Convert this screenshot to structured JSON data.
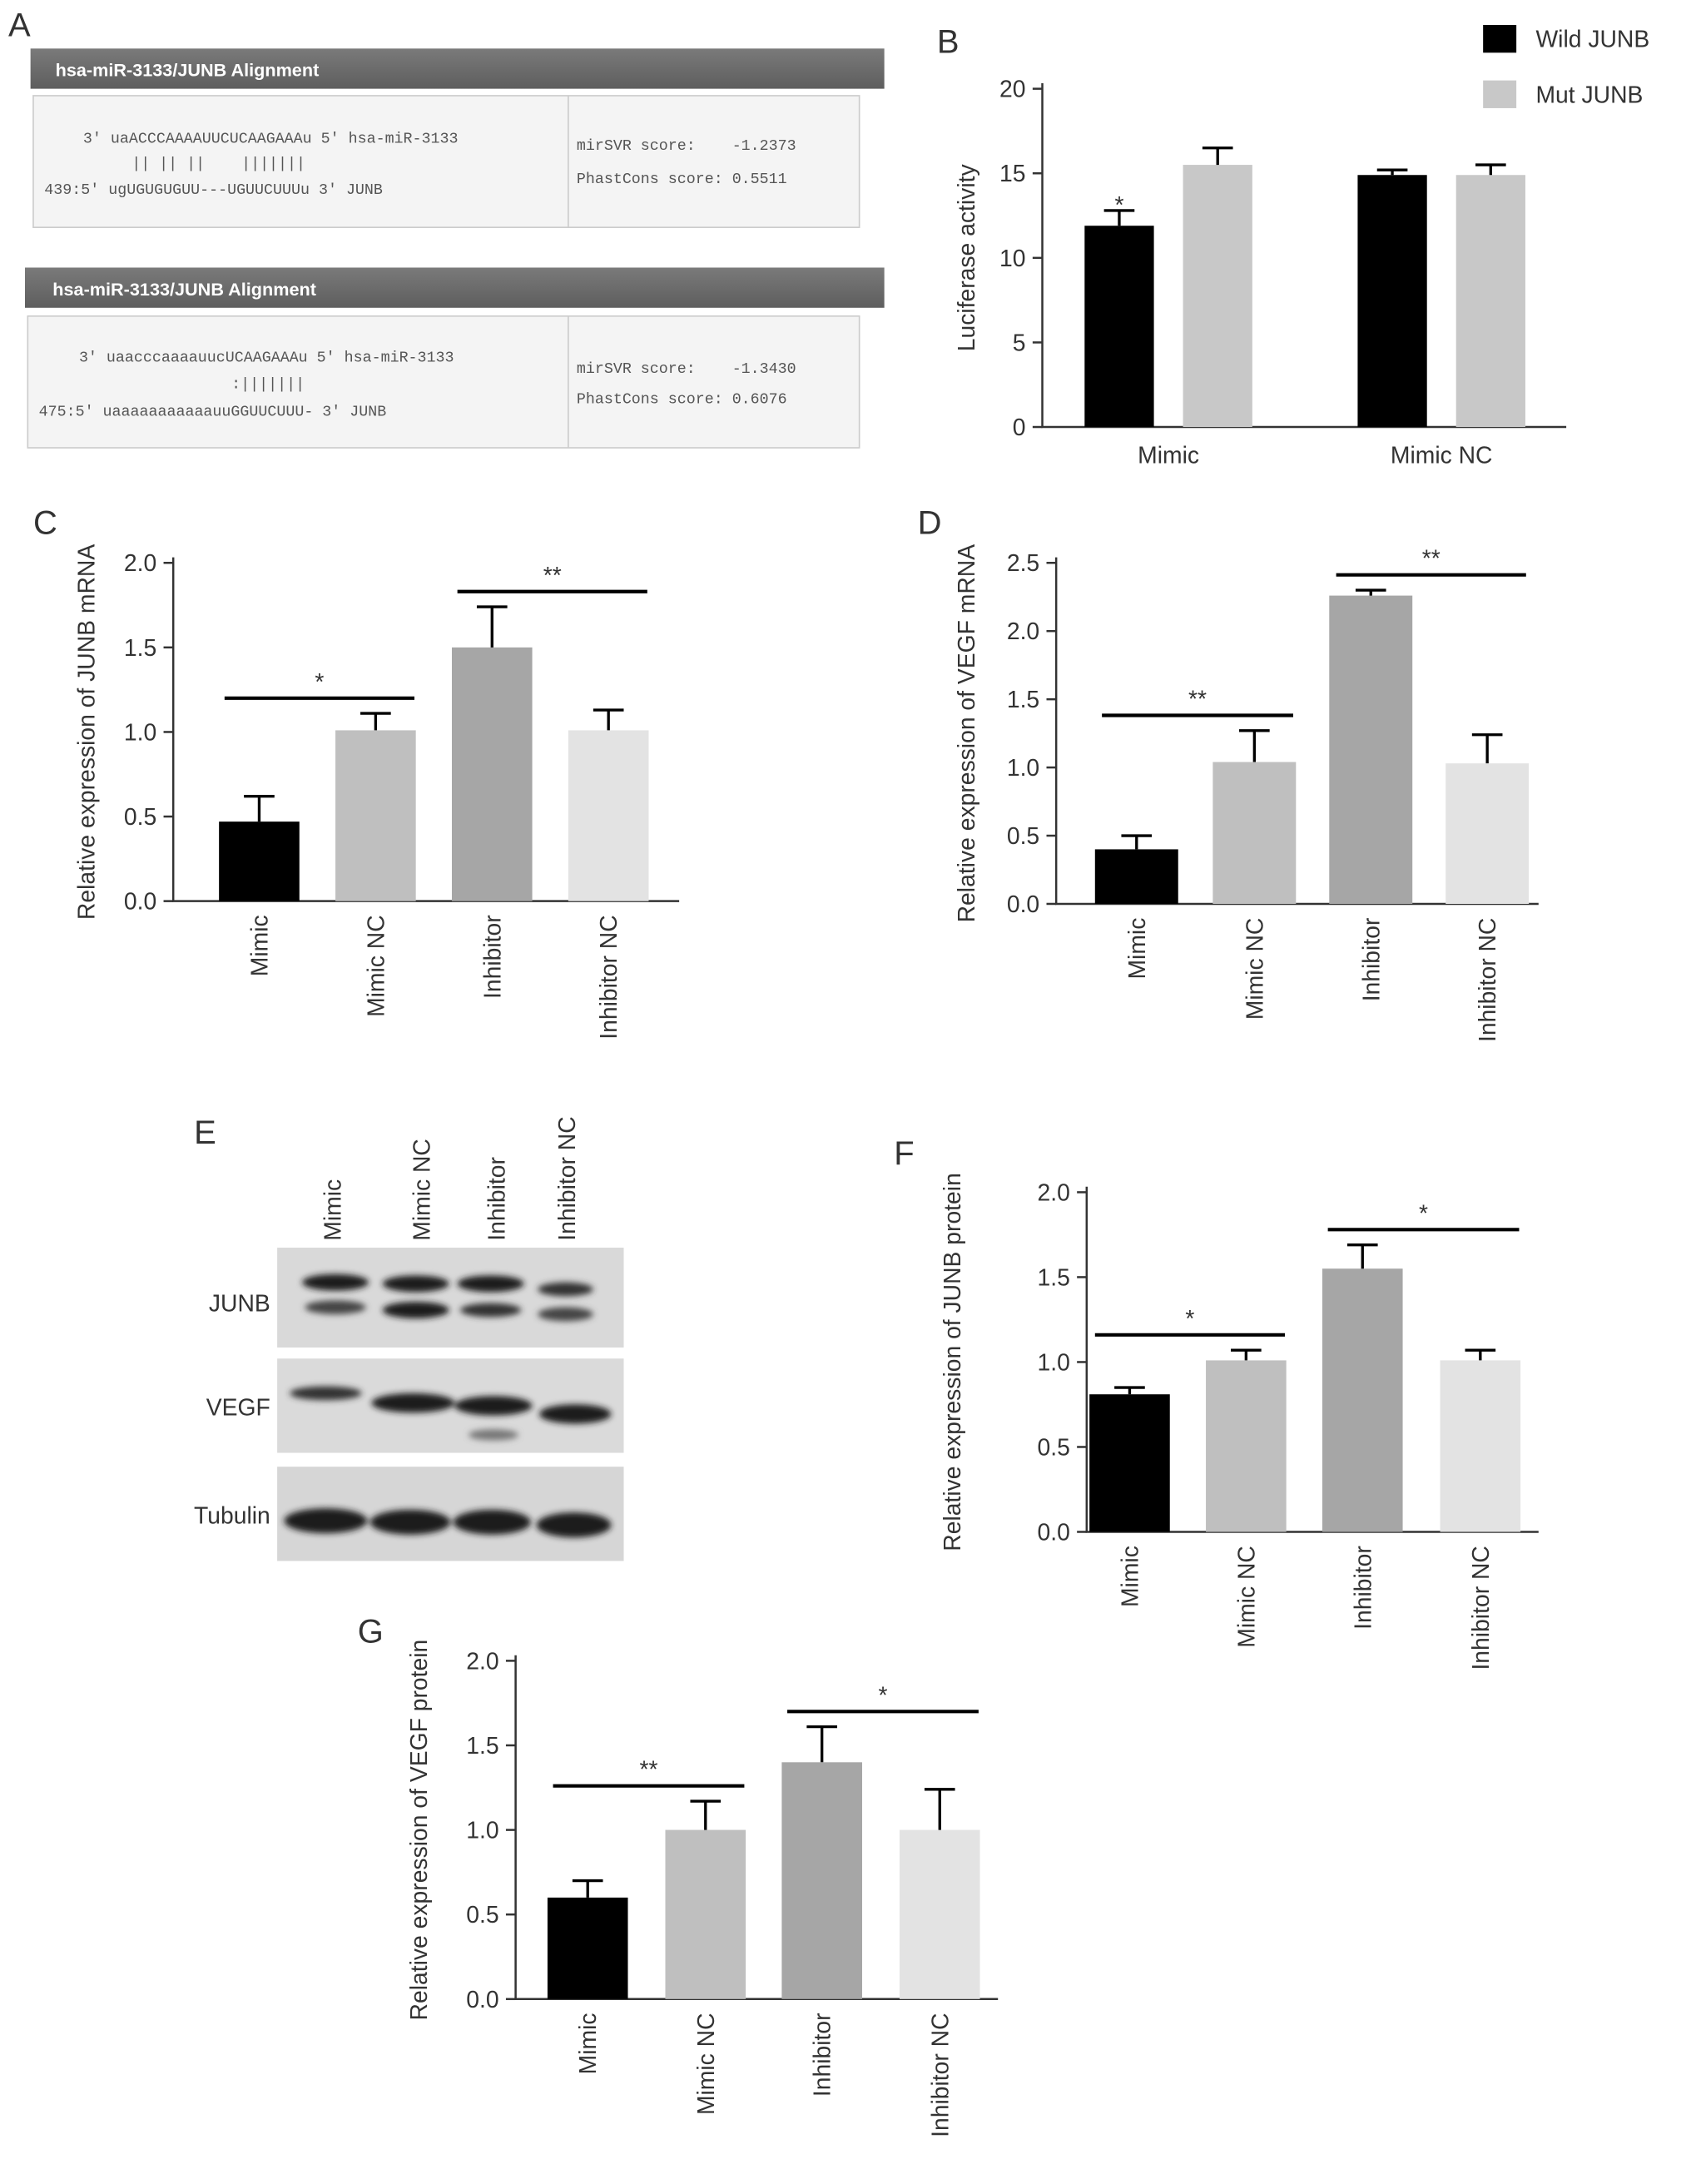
{
  "panel_labels": [
    "A",
    "B",
    "C",
    "D",
    "E",
    "F",
    "G"
  ],
  "alignments": [
    {
      "title": "hsa-miR-3133/JUNB Alignment",
      "lines": [
        "3' uaACCCAAAAUUCUCAAGAAAu 5' hsa-miR-3133",
        "|| || ||    |||||||",
        "439:5' ugUGUGUGUU---UGUUCUUUu 3' JUNB"
      ],
      "scores": [
        "mirSVR score:    -1.2373",
        "PhastCons score: 0.5511"
      ]
    },
    {
      "title": "hsa-miR-3133/JUNB Alignment",
      "lines": [
        "3' uaacccaaaauucUCAAGAAAu 5' hsa-miR-3133",
        ":|||||||",
        "475:5' uaaaaaaaaaaauuGGUUCUUU- 3' JUNB"
      ],
      "scores": [
        "mirSVR score:    -1.3430",
        "PhastCons score: 0.6076"
      ]
    }
  ],
  "blot": {
    "lanes": [
      "Mimic",
      "Mimic NC",
      "Inhibitor",
      "Inhibitor NC"
    ],
    "rows": [
      "JUNB",
      "VEGF",
      "Tubulin"
    ]
  },
  "chart_data": [
    {
      "type": "bar",
      "ylabel": "Luciferase activity",
      "categories": [
        "Mimic",
        "Mimic NC"
      ],
      "series": [
        {
          "name": "Wild JUNB",
          "color": "#000000",
          "values": [
            11.9,
            14.9
          ],
          "errors": [
            0.9,
            0.3
          ]
        },
        {
          "name": "Mut JUNB",
          "color": "#c8c8c8",
          "values": [
            15.5,
            14.9
          ],
          "errors": [
            1.0,
            0.6
          ]
        }
      ],
      "ylim": [
        0,
        20
      ],
      "yticks": [
        0,
        5,
        10,
        15,
        20
      ],
      "legend": "upper right",
      "annotations": [
        {
          "text": "*",
          "series": 0,
          "category": 0
        }
      ]
    },
    {
      "type": "bar",
      "ylabel": "Relative expression of JUNB mRNA",
      "categories": [
        "Mimic",
        "Mimic NC",
        "Inhibitor",
        "Inhibitor NC"
      ],
      "values": [
        0.47,
        1.01,
        1.5,
        1.01
      ],
      "errors": [
        0.15,
        0.1,
        0.24,
        0.12
      ],
      "colors": [
        "#000000",
        "#bfbfbf",
        "#a6a6a6",
        "#e3e3e3"
      ],
      "ylim": [
        0,
        2
      ],
      "yticks": [
        {
          "value": 0,
          "label": "0.0"
        },
        0.5,
        {
          "value": 1,
          "label": "1.0"
        },
        1.5,
        {
          "value": 2,
          "label": "2.0"
        }
      ],
      "annotations": [
        {
          "text": "*",
          "between": [
            0,
            1
          ]
        },
        {
          "text": "**",
          "between": [
            2,
            3
          ]
        }
      ]
    },
    {
      "type": "bar",
      "ylabel": "Relative expression of VEGF mRNA",
      "categories": [
        "Mimic",
        "Mimic NC",
        "Inhibitor",
        "Inhibitor NC"
      ],
      "values": [
        0.4,
        1.04,
        2.26,
        1.03
      ],
      "errors": [
        0.1,
        0.23,
        0.04,
        0.21
      ],
      "colors": [
        "#000000",
        "#bfbfbf",
        "#a6a6a6",
        "#e3e3e3"
      ],
      "ylim": [
        0,
        2.5
      ],
      "yticks": [
        {
          "value": 0,
          "label": "0.0"
        },
        0.5,
        {
          "value": 1,
          "label": "1.0"
        },
        1.5,
        {
          "value": 2,
          "label": "2.0"
        },
        2.5
      ],
      "annotations": [
        {
          "text": "**",
          "between": [
            0,
            1
          ]
        },
        {
          "text": "**",
          "between": [
            2,
            3
          ]
        }
      ]
    },
    {
      "type": "bar",
      "ylabel": "Relative expression of JUNB protein",
      "categories": [
        "Mimic",
        "Mimic NC",
        "Inhibitor",
        "Inhibitor NC"
      ],
      "values": [
        0.81,
        1.01,
        1.55,
        1.01
      ],
      "errors": [
        0.04,
        0.06,
        0.14,
        0.06
      ],
      "colors": [
        "#000000",
        "#bfbfbf",
        "#a6a6a6",
        "#e3e3e3"
      ],
      "ylim": [
        0,
        2
      ],
      "yticks": [
        {
          "value": 0,
          "label": "0.0"
        },
        0.5,
        {
          "value": 1,
          "label": "1.0"
        },
        1.5,
        {
          "value": 2,
          "label": "2.0"
        }
      ],
      "annotations": [
        {
          "text": "*",
          "between": [
            0,
            1
          ]
        },
        {
          "text": "*",
          "between": [
            2,
            3
          ]
        }
      ]
    },
    {
      "type": "bar",
      "ylabel": "Relative expression of VEGF protein",
      "categories": [
        "Mimic",
        "Mimic NC",
        "Inhibitor",
        "Inhibitor NC"
      ],
      "values": [
        0.6,
        1.0,
        1.4,
        1.0
      ],
      "errors": [
        0.1,
        0.17,
        0.21,
        0.24
      ],
      "colors": [
        "#000000",
        "#bfbfbf",
        "#a6a6a6",
        "#e3e3e3"
      ],
      "ylim": [
        0,
        2
      ],
      "yticks": [
        {
          "value": 0,
          "label": "0.0"
        },
        0.5,
        {
          "value": 1,
          "label": "1.0"
        },
        1.5,
        {
          "value": 2,
          "label": "2.0"
        }
      ],
      "annotations": [
        {
          "text": "**",
          "between": [
            0,
            1
          ]
        },
        {
          "text": "*",
          "between": [
            2,
            3
          ]
        }
      ]
    }
  ]
}
